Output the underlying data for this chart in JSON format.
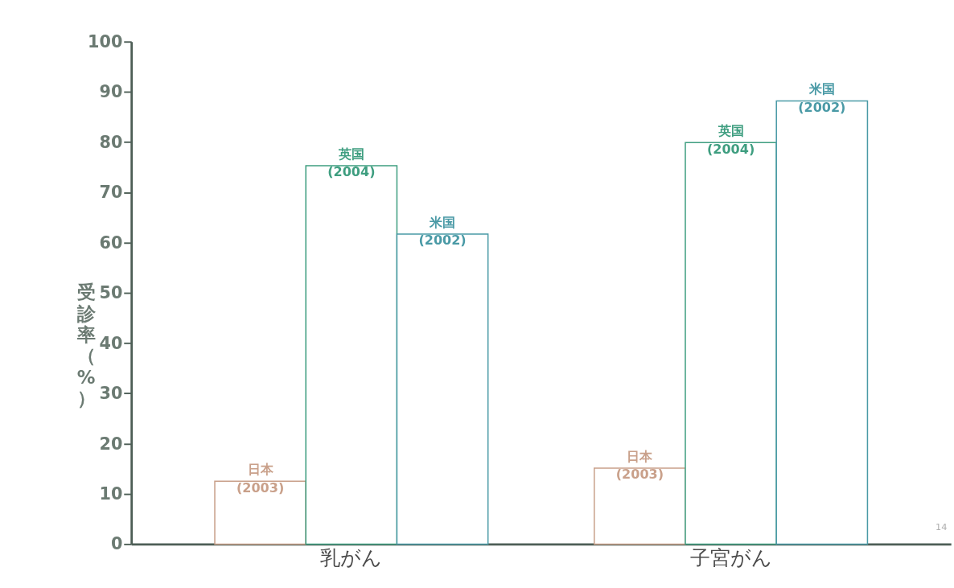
{
  "chart_data": {
    "type": "bar",
    "ylabel": "受診率（%）",
    "categories": [
      "乳がん",
      "子宮がん"
    ],
    "series": [
      {
        "name": "日本\n(2003)",
        "color": "#c9a08a",
        "values": [
          12.5,
          15.1
        ]
      },
      {
        "name": "英国\n(2004)",
        "color": "#3f9e80",
        "values": [
          75.3,
          79.9
        ]
      },
      {
        "name": "米国\n(2002)",
        "color": "#4a9aa6",
        "values": [
          61.7,
          88.2
        ]
      }
    ],
    "ylim": [
      0,
      100
    ],
    "yticks": [
      0,
      10,
      20,
      30,
      40,
      50,
      60,
      70,
      80,
      90,
      100
    ],
    "grid": false,
    "legend": false,
    "annotations": [
      "14"
    ]
  }
}
